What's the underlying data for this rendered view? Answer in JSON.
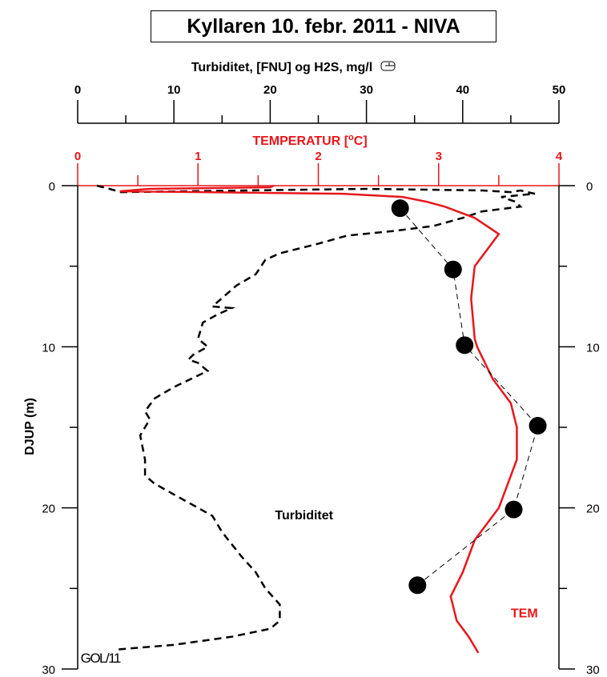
{
  "chart_data": {
    "type": "line",
    "title": "Kyllaren 10. febr. 2011 - NIVA",
    "top_axis": {
      "label": "Turbiditet, [FNU] og H2S, mg/l",
      "label_icon": "mailbox-icon",
      "range": [
        0,
        50
      ],
      "ticks": [
        "0",
        "10",
        "20",
        "30",
        "40",
        "50"
      ],
      "tick_values": [
        0,
        10,
        20,
        30,
        40,
        50
      ],
      "minor_step": 5
    },
    "temp_axis": {
      "label": "TEMPERATUR  [°C]",
      "label_prefix": "TEMPERATUR  [",
      "label_degree": "o",
      "label_suffix": "C]",
      "range": [
        0,
        4
      ],
      "ticks": [
        "0",
        "1",
        "2",
        "3",
        "4"
      ],
      "tick_values": [
        0,
        1,
        2,
        3,
        4
      ],
      "minor_step": 0.5,
      "color": "#e8161b"
    },
    "y_axis": {
      "label": "DJUP  (m)",
      "range": [
        0,
        30
      ],
      "ticks": [
        "0",
        "10",
        "20",
        "30"
      ],
      "tick_values": [
        0,
        10,
        20,
        30
      ],
      "minor_step": 5,
      "inverted": true
    },
    "series": [
      {
        "name": "Turbiditet",
        "axis": "top",
        "style": "dashed",
        "color": "#000000",
        "points": [
          [
            2.0,
            0.0
          ],
          [
            3.3,
            0.2
          ],
          [
            4.5,
            0.4
          ],
          [
            30,
            0.2
          ],
          [
            42,
            0.3
          ],
          [
            45,
            0.4
          ],
          [
            46,
            0.3
          ],
          [
            47.5,
            0.5
          ],
          [
            44,
            0.7
          ],
          [
            45.5,
            1.0
          ],
          [
            46,
            1.3
          ],
          [
            42,
            1.6
          ],
          [
            40,
            2.0
          ],
          [
            37,
            2.5
          ],
          [
            33,
            2.8
          ],
          [
            28,
            3.1
          ],
          [
            25,
            3.6
          ],
          [
            21,
            4.2
          ],
          [
            19.5,
            4.6
          ],
          [
            18.5,
            5.5
          ],
          [
            16.5,
            6.2
          ],
          [
            14,
            7.5
          ],
          [
            16,
            7.6
          ],
          [
            14.5,
            8.0
          ],
          [
            13,
            8.5
          ],
          [
            12.5,
            9.5
          ],
          [
            13.5,
            10.0
          ],
          [
            12,
            10.5
          ],
          [
            11.5,
            10.8
          ],
          [
            12.5,
            11.0
          ],
          [
            13.5,
            11.5
          ],
          [
            10,
            12.5
          ],
          [
            8,
            13.2
          ],
          [
            7,
            14.0
          ],
          [
            7.5,
            14.5
          ],
          [
            6.5,
            15.5
          ],
          [
            7,
            17.0
          ],
          [
            7,
            18.0
          ],
          [
            8,
            18.5
          ],
          [
            11,
            19.5
          ],
          [
            14,
            20.5
          ],
          [
            15,
            21.5
          ],
          [
            17,
            23.0
          ],
          [
            18.5,
            24.0
          ],
          [
            19.5,
            25.0
          ],
          [
            21,
            26.0
          ],
          [
            21,
            27.0
          ],
          [
            20,
            27.5
          ],
          [
            16,
            28.0
          ],
          [
            10,
            28.5
          ],
          [
            4,
            28.8
          ]
        ]
      },
      {
        "name": "TEM",
        "axis": "temp",
        "style": "solid",
        "color": "#e8161b",
        "points": [
          [
            1.63,
            0.0
          ],
          [
            1.6,
            0.1
          ],
          [
            0.6,
            0.2
          ],
          [
            0.35,
            0.35
          ],
          [
            2.2,
            0.5
          ],
          [
            2.7,
            0.7
          ],
          [
            2.9,
            1.0
          ],
          [
            3.05,
            1.3
          ],
          [
            3.3,
            2.0
          ],
          [
            3.5,
            3.0
          ],
          [
            3.45,
            3.5
          ],
          [
            3.3,
            5.0
          ],
          [
            3.27,
            7.0
          ],
          [
            3.3,
            9.5
          ],
          [
            3.32,
            10.0
          ],
          [
            3.45,
            12.0
          ],
          [
            3.6,
            13.5
          ],
          [
            3.65,
            15.0
          ],
          [
            3.65,
            17.0
          ],
          [
            3.5,
            20.0
          ],
          [
            3.3,
            22.0
          ],
          [
            3.2,
            24.0
          ],
          [
            3.1,
            25.5
          ],
          [
            3.15,
            27.0
          ],
          [
            3.25,
            28.0
          ],
          [
            3.33,
            29.0
          ]
        ]
      },
      {
        "name": "H2S",
        "axis": "top",
        "style": "dashed-markers",
        "color": "#000000",
        "points": [
          [
            33.5,
            1.4
          ],
          [
            39,
            5.2
          ],
          [
            40.2,
            9.9
          ],
          [
            47.8,
            14.9
          ],
          [
            45.3,
            20.1
          ],
          [
            35.3,
            24.8
          ]
        ]
      }
    ],
    "annotations": [
      {
        "text": "Turbiditet",
        "at": [
          20.5,
          20.7
        ]
      },
      {
        "text": "TEM",
        "at": [
          3.6,
          26.8
        ],
        "color": "#e8161b"
      },
      {
        "text": "GOL/11",
        "at": [
          0.3,
          29.6
        ]
      }
    ]
  }
}
